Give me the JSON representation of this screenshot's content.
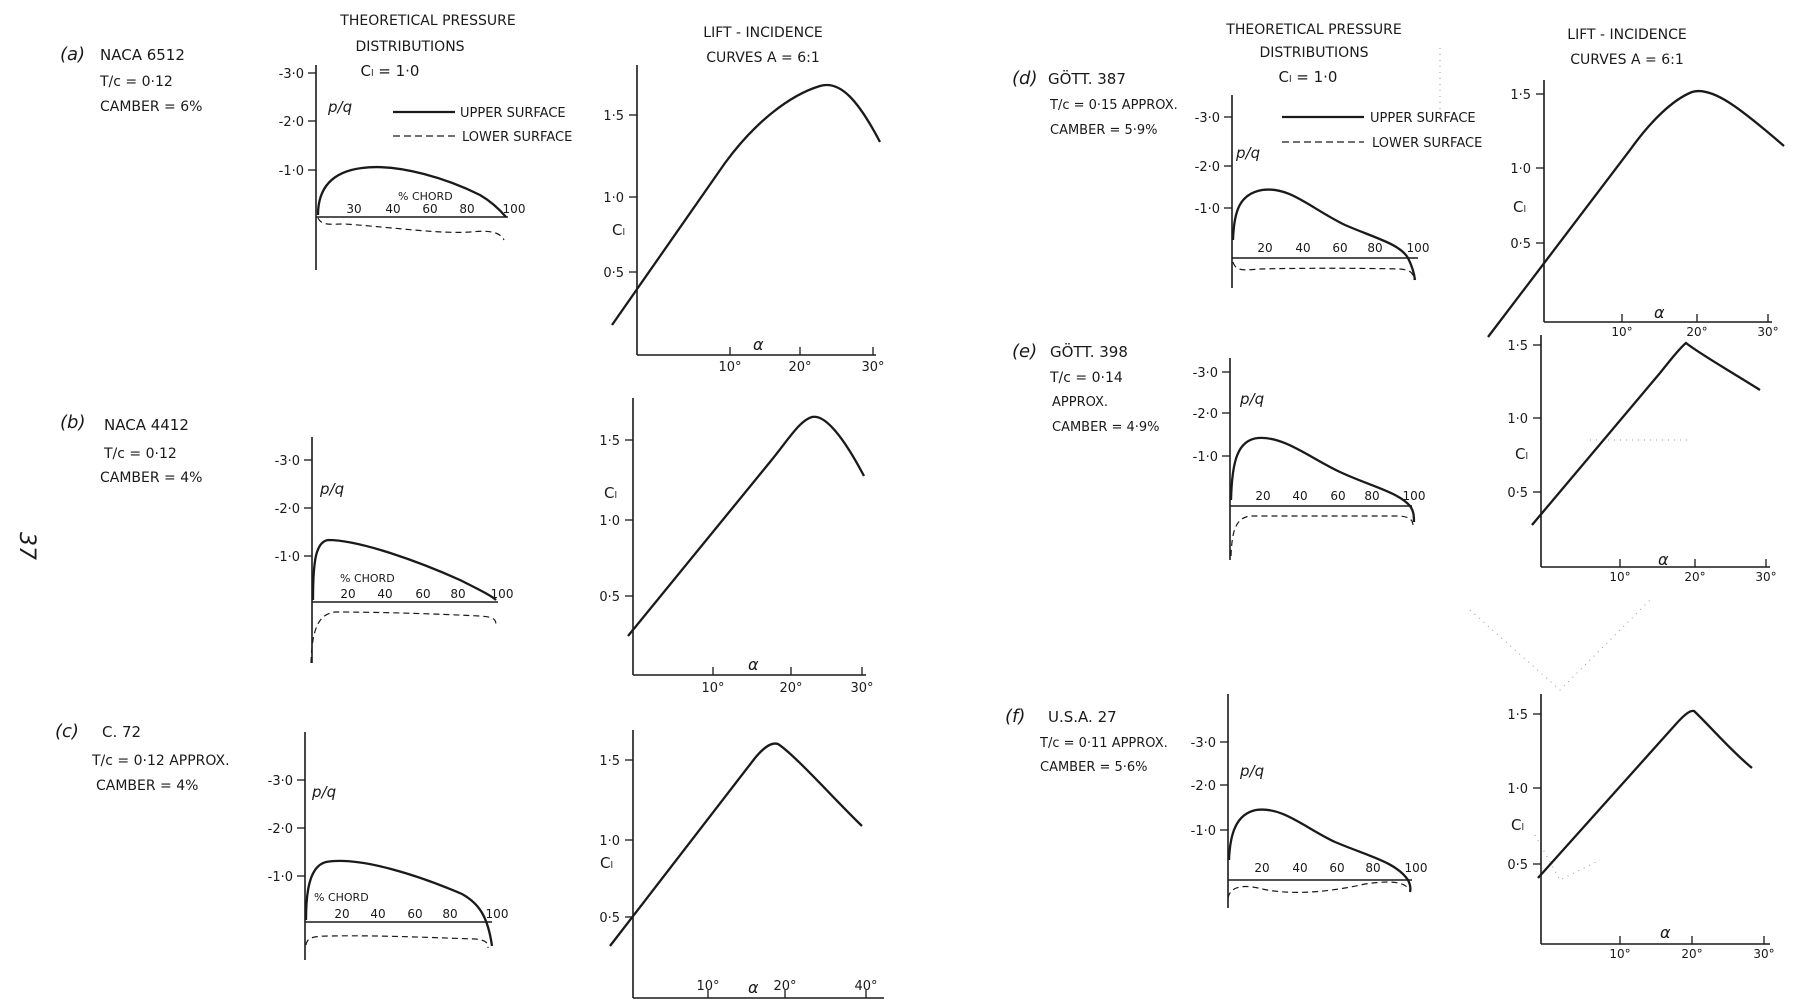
{
  "page_number": "37",
  "section_left": {
    "pressure_heading": [
      "THEORETICAL PRESSURE",
      "DISTRIBUTIONS"
    ],
    "cl_note": "Cₗ = 1·0",
    "lift_heading": [
      "LIFT - INCIDENCE",
      "CURVES  A = 6:1"
    ],
    "legend_upper": "UPPER SURFACE",
    "legend_lower": "LOWER SURFACE"
  },
  "section_right": {
    "pressure_heading": [
      "THEORETICAL PRESSURE",
      "DISTRIBUTIONS"
    ],
    "cl_note": "Cₗ = 1·0",
    "lift_heading": [
      "LIFT - INCIDENCE",
      "CURVES  A = 6:1"
    ],
    "legend_upper": "UPPER SURFACE",
    "legend_lower": "LOWER SURFACE"
  },
  "axis_text": {
    "p_over_q": "p/q",
    "chord_label": "% CHORD",
    "cl_label": "Cₗ",
    "alpha_label": "α"
  },
  "panels": [
    {
      "tag": "(a)",
      "name": "NACA 6512",
      "lines": [
        "T/c = 0·12",
        "CAMBER = 6%"
      ],
      "pressure": {
        "y_ticks": [
          "-3·0",
          "-2·0",
          "-1·0"
        ],
        "x_ticks": [
          "30",
          "40",
          "60",
          "80",
          "100"
        ],
        "show_chord_label": true
      },
      "lift": {
        "y_ticks": [
          "1·5",
          "1·0",
          "0·5"
        ],
        "x_ticks": [
          "10°",
          "20°",
          "30°"
        ]
      }
    },
    {
      "tag": "(b)",
      "name": "NACA 4412",
      "lines": [
        "T/c = 0·12",
        "CAMBER = 4%"
      ],
      "pressure": {
        "y_ticks": [
          "-3·0",
          "-2·0",
          "-1·0"
        ],
        "x_ticks": [
          "20",
          "40",
          "60",
          "80",
          "100"
        ],
        "show_chord_label": true
      },
      "lift": {
        "y_ticks": [
          "1·5",
          "1·0",
          "0·5"
        ],
        "x_ticks": [
          "10°",
          "20°",
          "30°"
        ]
      }
    },
    {
      "tag": "(c)",
      "name": "C. 72",
      "lines": [
        "T/c = 0·12  APPROX.",
        "CAMBER = 4%"
      ],
      "pressure": {
        "y_ticks": [
          "-3·0",
          "-2·0",
          "-1·0"
        ],
        "x_ticks": [
          "20",
          "40",
          "60",
          "80",
          "100"
        ],
        "show_chord_label": true
      },
      "lift": {
        "y_ticks": [
          "1·5",
          "1·0",
          "0·5"
        ],
        "x_ticks": [
          "10°",
          "20°",
          "40°"
        ]
      }
    },
    {
      "tag": "(d)",
      "name": "GÖTT. 387",
      "lines": [
        "T/c = 0·15  APPROX.",
        "CAMBER = 5·9%"
      ],
      "pressure": {
        "y_ticks": [
          "-3·0",
          "-2·0",
          "-1·0"
        ],
        "x_ticks": [
          "20",
          "40",
          "60",
          "80",
          "100"
        ],
        "show_chord_label": false
      },
      "lift": {
        "y_ticks": [
          "1·5",
          "1·0",
          "0·5"
        ],
        "x_ticks": [
          "10°",
          "20°",
          "30°"
        ]
      }
    },
    {
      "tag": "(e)",
      "name": "GÖTT. 398",
      "lines": [
        "T/c = 0·14",
        "APPROX.",
        "CAMBER = 4·9%"
      ],
      "pressure": {
        "y_ticks": [
          "-3·0",
          "-2·0",
          "-1·0"
        ],
        "x_ticks": [
          "20",
          "40",
          "60",
          "80",
          "100"
        ],
        "show_chord_label": false
      },
      "lift": {
        "y_ticks": [
          "1·5",
          "1·0",
          "0·5"
        ],
        "x_ticks": [
          "10°",
          "20°",
          "30°"
        ]
      }
    },
    {
      "tag": "(f)",
      "name": "U.S.A. 27",
      "lines": [
        "T/c = 0·11  APPROX.",
        "CAMBER = 5·6%"
      ],
      "pressure": {
        "y_ticks": [
          "-3·0",
          "-2·0",
          "-1·0"
        ],
        "x_ticks": [
          "20",
          "40",
          "60",
          "80",
          "100"
        ],
        "show_chord_label": false
      },
      "lift": {
        "y_ticks": [
          "1·5",
          "1·0",
          "0·5"
        ],
        "x_ticks": [
          "10°",
          "20°",
          "30°"
        ]
      }
    }
  ]
}
